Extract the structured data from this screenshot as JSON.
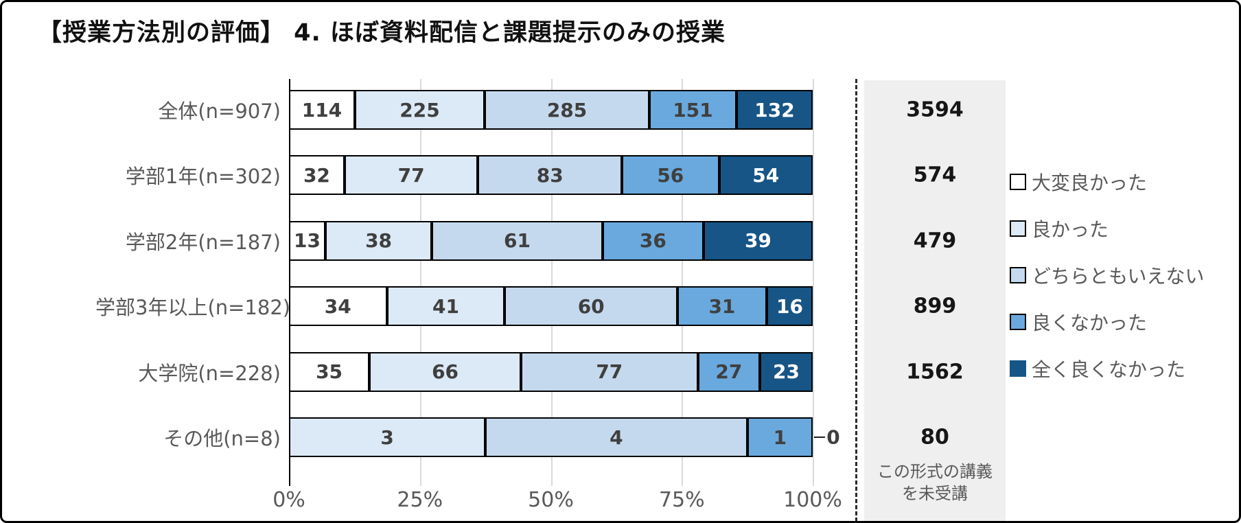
{
  "title": "【授業方法別の評価】 4. ほぼ資料配信と課題提示のみの授業",
  "chart_data": {
    "type": "bar",
    "orientation": "horizontal",
    "stacked": true,
    "normalized": "percent_of_n",
    "grid": true,
    "legend_position": "right",
    "categories": [
      "全体(n=907)",
      "学部1年(n=302)",
      "学部2年(n=187)",
      "学部3年以上(n=182)",
      "大学院(n=228)",
      "その他(n=8)"
    ],
    "n": [
      907,
      302,
      187,
      182,
      228,
      8
    ],
    "series": [
      {
        "name": "大変良かった",
        "color": "#ffffff",
        "values": [
          114,
          32,
          13,
          34,
          35,
          0
        ]
      },
      {
        "name": "良かった",
        "color": "#dce9f6",
        "values": [
          225,
          77,
          38,
          41,
          66,
          3
        ]
      },
      {
        "name": "どちらともいえない",
        "color": "#c5d9ee",
        "values": [
          285,
          83,
          61,
          60,
          77,
          4
        ]
      },
      {
        "name": "良くなかった",
        "color": "#69a9de",
        "values": [
          151,
          56,
          36,
          31,
          27,
          1
        ]
      },
      {
        "name": "全く良くなかった",
        "color": "#175586",
        "values": [
          132,
          54,
          39,
          16,
          23,
          0
        ]
      }
    ],
    "x_ticks": [
      "0%",
      "25%",
      "50%",
      "75%",
      "100%"
    ],
    "xlim": [
      0,
      100
    ],
    "not_taken_column": {
      "values": [
        3594,
        574,
        479,
        899,
        1562,
        80
      ],
      "footer_lines": [
        "この形式の講義",
        "を未受講"
      ]
    }
  },
  "colors": {
    "axis": "#000000",
    "gridline": "#d9d9d9",
    "row_label_text": "#595959",
    "bar_label_text": "#3f3f3f",
    "bar_label_text_on_dark": "#ffffff",
    "panel_background": "#efefef",
    "panel_value_text": "#161616",
    "legend_text": "#595959"
  }
}
